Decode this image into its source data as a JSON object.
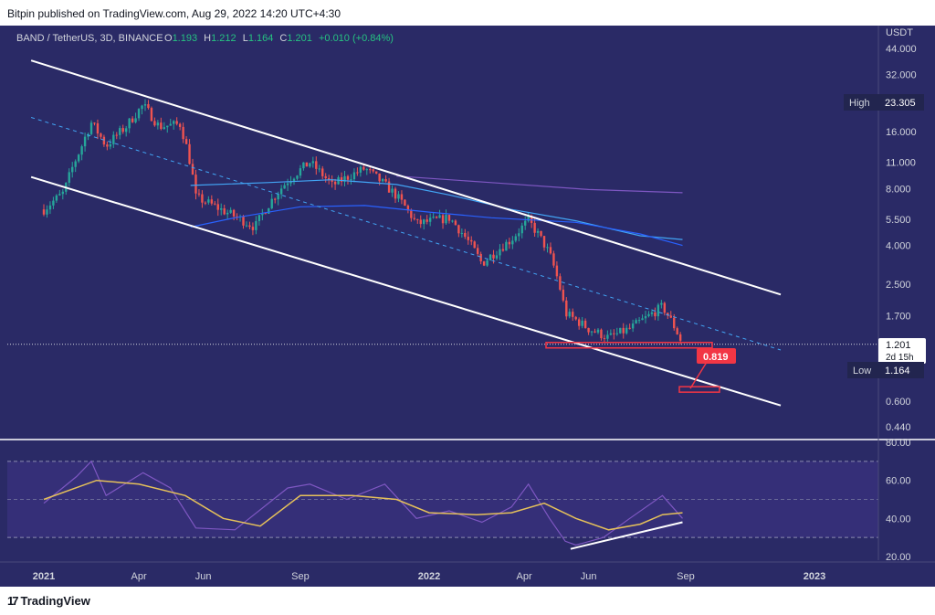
{
  "header": {
    "published": "Bitpin published on TradingView.com, Aug 29, 2022 14:20 UTC+4:30"
  },
  "footer": {
    "brand": "TradingView",
    "brand_mark": "17"
  },
  "colors": {
    "background": "#2a2a66",
    "up": "#26a69a",
    "down": "#ef5350",
    "rsi_line": "#7e57c2",
    "rsi_ma": "#e6c15a",
    "ma_blue": "#2962ff",
    "ma_light": "#42a5f5",
    "ma_purple": "#7e57c2",
    "channel": "#ffffff"
  },
  "chart_data": [
    {
      "type": "candlestick",
      "symbol_label": "BAND / TetherUS, 3D, BINANCE",
      "ohlc": {
        "O_label": "O",
        "O": "1.193",
        "H_label": "H",
        "H": "1.212",
        "L_label": "L",
        "L": "1.164",
        "C_label": "C",
        "C": "1.201",
        "change": "+0.010 (+0.84%)"
      },
      "y_scale": "log",
      "y_axis_unit": "USDT",
      "y_ticks": [
        "44.000",
        "32.000",
        "16.000",
        "11.000",
        "8.000",
        "5.500",
        "4.000",
        "2.500",
        "1.700",
        "0.600",
        "0.440"
      ],
      "x_ticks": [
        "2021",
        "Apr",
        "Jun",
        "Sep",
        "2022",
        "Apr",
        "Jun",
        "Sep",
        "2023"
      ],
      "price_tags": {
        "high_label": "High",
        "high": "23.305",
        "last": "1.201",
        "countdown": "2d 15h",
        "low_label": "Low",
        "low": "1.164"
      },
      "annotation": "0.819",
      "price_path": [
        {
          "date": "2021-01-01",
          "price": 6.2
        },
        {
          "date": "2021-01-20",
          "price": 7.6
        },
        {
          "date": "2021-02-05",
          "price": 13.0
        },
        {
          "date": "2021-02-15",
          "price": 17.8
        },
        {
          "date": "2021-03-01",
          "price": 13.4
        },
        {
          "date": "2021-03-20",
          "price": 17.0
        },
        {
          "date": "2021-04-05",
          "price": 22.0
        },
        {
          "date": "2021-04-20",
          "price": 17.0
        },
        {
          "date": "2021-05-10",
          "price": 17.5
        },
        {
          "date": "2021-05-25",
          "price": 7.2
        },
        {
          "date": "2021-06-20",
          "price": 6.1
        },
        {
          "date": "2021-07-20",
          "price": 5.0
        },
        {
          "date": "2021-08-20",
          "price": 8.8
        },
        {
          "date": "2021-09-10",
          "price": 11.0
        },
        {
          "date": "2021-10-01",
          "price": 8.3
        },
        {
          "date": "2021-11-01",
          "price": 10.2
        },
        {
          "date": "2021-12-01",
          "price": 7.3
        },
        {
          "date": "2021-12-20",
          "price": 5.2
        },
        {
          "date": "2022-01-20",
          "price": 5.6
        },
        {
          "date": "2022-02-20",
          "price": 3.2
        },
        {
          "date": "2022-03-20",
          "price": 4.3
        },
        {
          "date": "2022-04-05",
          "price": 5.4
        },
        {
          "date": "2022-04-25",
          "price": 3.6
        },
        {
          "date": "2022-05-10",
          "price": 1.75
        },
        {
          "date": "2022-06-01",
          "price": 1.45
        },
        {
          "date": "2022-06-20",
          "price": 1.3
        },
        {
          "date": "2022-07-10",
          "price": 1.45
        },
        {
          "date": "2022-07-25",
          "price": 1.65
        },
        {
          "date": "2022-08-10",
          "price": 1.9
        },
        {
          "date": "2022-08-29",
          "price": 1.201
        }
      ],
      "moving_averages": [
        {
          "color": "#42a5f5",
          "points": [
            {
              "date": "2021-05-20",
              "price": 8.3
            },
            {
              "date": "2021-08-01",
              "price": 8.6
            },
            {
              "date": "2021-10-01",
              "price": 8.9
            },
            {
              "date": "2021-12-01",
              "price": 8.4
            },
            {
              "date": "2022-01-20",
              "price": 7.4
            },
            {
              "date": "2022-03-20",
              "price": 6.2
            },
            {
              "date": "2022-05-20",
              "price": 5.4
            },
            {
              "date": "2022-07-20",
              "price": 4.5
            },
            {
              "date": "2022-08-29",
              "price": 4.3
            }
          ]
        },
        {
          "color": "#2962ff",
          "points": [
            {
              "date": "2021-05-20",
              "price": 5.0
            },
            {
              "date": "2021-07-01",
              "price": 5.6
            },
            {
              "date": "2021-09-01",
              "price": 6.4
            },
            {
              "date": "2021-11-01",
              "price": 6.5
            },
            {
              "date": "2022-01-01",
              "price": 6.0
            },
            {
              "date": "2022-03-01",
              "price": 5.6
            },
            {
              "date": "2022-05-20",
              "price": 5.3
            },
            {
              "date": "2022-07-20",
              "price": 4.6
            },
            {
              "date": "2022-08-29",
              "price": 4.0
            }
          ]
        },
        {
          "color": "#7e57c2",
          "points": [
            {
              "date": "2021-12-01",
              "price": 9.3
            },
            {
              "date": "2022-03-01",
              "price": 8.6
            },
            {
              "date": "2022-06-01",
              "price": 7.9
            },
            {
              "date": "2022-08-29",
              "price": 7.6
            }
          ]
        }
      ],
      "channel_lines": [
        {
          "style": "solid",
          "from": {
            "date": "2020-12-20",
            "price": 38.0
          },
          "to": {
            "date": "2022-11-30",
            "price": 2.2
          }
        },
        {
          "style": "solid",
          "from": {
            "date": "2020-12-20",
            "price": 9.2
          },
          "to": {
            "date": "2022-11-30",
            "price": 0.57
          }
        },
        {
          "style": "dashed",
          "from": {
            "date": "2020-12-20",
            "price": 19.0
          },
          "to": {
            "date": "2022-11-30",
            "price": 1.12
          }
        }
      ]
    },
    {
      "type": "line",
      "name": "RSI",
      "y_ticks": [
        "80.00",
        "60.00",
        "40.00",
        "20.00"
      ],
      "band_upper": 70,
      "band_lower": 30,
      "rsi": [
        {
          "date": "2021-01-01",
          "value": 48
        },
        {
          "date": "2021-02-01",
          "value": 62
        },
        {
          "date": "2021-02-15",
          "value": 70
        },
        {
          "date": "2021-03-01",
          "value": 52
        },
        {
          "date": "2021-04-05",
          "value": 64
        },
        {
          "date": "2021-05-01",
          "value": 56
        },
        {
          "date": "2021-05-25",
          "value": 35
        },
        {
          "date": "2021-07-01",
          "value": 34
        },
        {
          "date": "2021-08-20",
          "value": 56
        },
        {
          "date": "2021-09-10",
          "value": 58
        },
        {
          "date": "2021-10-15",
          "value": 50
        },
        {
          "date": "2021-11-20",
          "value": 58
        },
        {
          "date": "2021-12-20",
          "value": 40
        },
        {
          "date": "2022-01-20",
          "value": 44
        },
        {
          "date": "2022-02-20",
          "value": 38
        },
        {
          "date": "2022-03-20",
          "value": 46
        },
        {
          "date": "2022-04-05",
          "value": 58
        },
        {
          "date": "2022-04-25",
          "value": 40
        },
        {
          "date": "2022-05-10",
          "value": 28
        },
        {
          "date": "2022-05-20",
          "value": 26
        },
        {
          "date": "2022-06-15",
          "value": 30
        },
        {
          "date": "2022-07-10",
          "value": 40
        },
        {
          "date": "2022-08-10",
          "value": 52
        },
        {
          "date": "2022-08-29",
          "value": 40
        }
      ],
      "rsi_ma": [
        {
          "date": "2021-01-01",
          "value": 50
        },
        {
          "date": "2021-02-20",
          "value": 60
        },
        {
          "date": "2021-04-01",
          "value": 58
        },
        {
          "date": "2021-05-15",
          "value": 52
        },
        {
          "date": "2021-06-20",
          "value": 40
        },
        {
          "date": "2021-07-25",
          "value": 36
        },
        {
          "date": "2021-09-01",
          "value": 52
        },
        {
          "date": "2021-10-20",
          "value": 52
        },
        {
          "date": "2021-12-01",
          "value": 50
        },
        {
          "date": "2022-01-01",
          "value": 43
        },
        {
          "date": "2022-02-15",
          "value": 42
        },
        {
          "date": "2022-03-20",
          "value": 43
        },
        {
          "date": "2022-04-20",
          "value": 48
        },
        {
          "date": "2022-05-20",
          "value": 40
        },
        {
          "date": "2022-06-20",
          "value": 34
        },
        {
          "date": "2022-07-20",
          "value": 37
        },
        {
          "date": "2022-08-10",
          "value": 42
        },
        {
          "date": "2022-08-29",
          "value": 43
        }
      ],
      "trendline": {
        "from": {
          "date": "2022-05-15",
          "value": 24
        },
        "to": {
          "date": "2022-08-29",
          "value": 38
        }
      }
    }
  ]
}
